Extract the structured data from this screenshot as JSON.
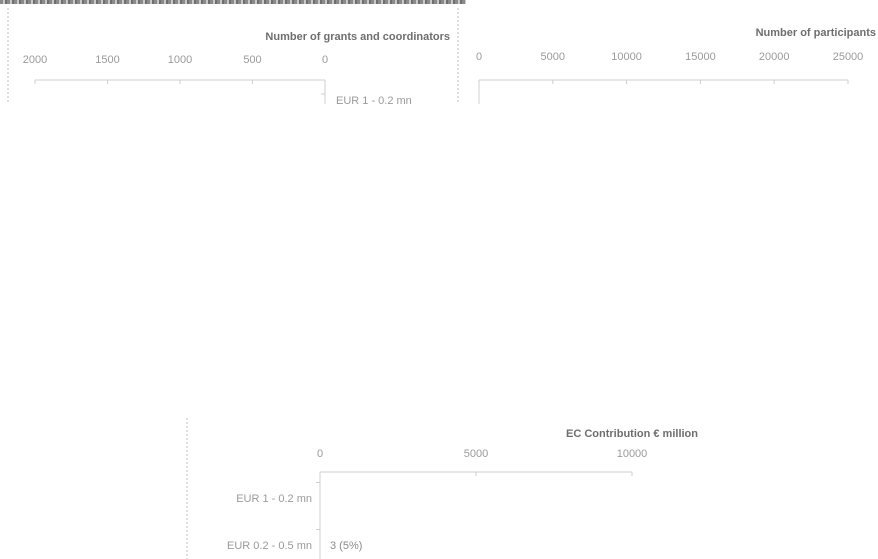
{
  "chart_data": [
    {
      "id": "grants",
      "type": "bar",
      "title": "Number of grants and coordinators",
      "axis": {
        "min": 0,
        "max": 2000,
        "reversed": true
      },
      "ticks": [
        "2000",
        "1500",
        "1000",
        "500",
        "0"
      ],
      "categories": [
        "EUR 1 - 0.2 mn"
      ],
      "series": [],
      "data_labels": []
    },
    {
      "id": "participants",
      "type": "bar",
      "title": "Number of participants",
      "axis": {
        "min": 0,
        "max": 25000,
        "reversed": false
      },
      "ticks": [
        "0",
        "5000",
        "10000",
        "15000",
        "20000",
        "25000"
      ],
      "categories": [],
      "series": [],
      "data_labels": []
    },
    {
      "id": "ec-contribution",
      "type": "bar",
      "title": "EC Contribution € million",
      "axis": {
        "min": 0,
        "max": 10000,
        "reversed": false
      },
      "ticks": [
        "0",
        "5000",
        "10000"
      ],
      "categories": [
        "EUR 1 - 0.2 mn",
        "EUR 0.2 - 0.5 mn"
      ],
      "series": [],
      "data_labels": [
        "",
        "3 (5%)"
      ]
    }
  ]
}
